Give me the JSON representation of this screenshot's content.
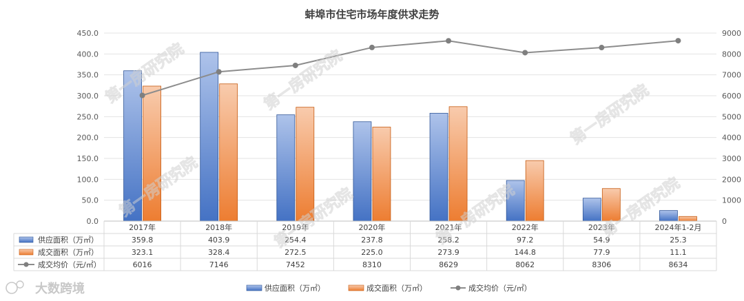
{
  "title": "蚌埠市住宅市场年度供求走势",
  "chart_data": {
    "type": "bar",
    "title": "蚌埠市住宅市场年度供求走势",
    "categories": [
      "2017年",
      "2018年",
      "2019年",
      "2020年",
      "2021年",
      "2022年",
      "2023年",
      "2024年1-2月"
    ],
    "series": [
      {
        "name": "供应面积（万㎡）",
        "type": "bar",
        "axis": "left",
        "color": "#4472C4",
        "values": [
          359.8,
          403.9,
          254.4,
          237.8,
          258.2,
          97.2,
          54.9,
          25.3
        ]
      },
      {
        "name": "成交面积（万㎡）",
        "type": "bar",
        "axis": "left",
        "color": "#ED7D31",
        "values": [
          323.1,
          328.4,
          272.5,
          225.0,
          273.9,
          144.8,
          77.9,
          11.1
        ]
      },
      {
        "name": "成交均价（元/㎡）",
        "type": "line",
        "axis": "right",
        "color": "#8C8C8C",
        "values": [
          6016,
          7146,
          7452,
          8310,
          8629,
          8062,
          8306,
          8634
        ]
      }
    ],
    "left_axis": {
      "min": 0,
      "max": 450,
      "step": 50,
      "ticks": [
        "0.0",
        "50.0",
        "100.0",
        "150.0",
        "200.0",
        "250.0",
        "300.0",
        "350.0",
        "400.0",
        "450.0"
      ]
    },
    "right_axis": {
      "min": 0,
      "max": 9000,
      "step": 1000,
      "ticks": [
        "0",
        "1000",
        "2000",
        "3000",
        "4000",
        "5000",
        "6000",
        "7000",
        "8000",
        "9000"
      ]
    },
    "table": {
      "rows": [
        [
          "359.8",
          "403.9",
          "254.4",
          "237.8",
          "258.2",
          "97.2",
          "54.9",
          "25.3"
        ],
        [
          "323.1",
          "328.4",
          "272.5",
          "225.0",
          "273.9",
          "144.8",
          "77.9",
          "11.1"
        ],
        [
          "6016",
          "7146",
          "7452",
          "8310",
          "8629",
          "8062",
          "8306",
          "8634"
        ]
      ]
    },
    "grid": true,
    "legend_position": "bottom"
  },
  "watermark": "第一房研究院",
  "logo_text": "大数跨境"
}
